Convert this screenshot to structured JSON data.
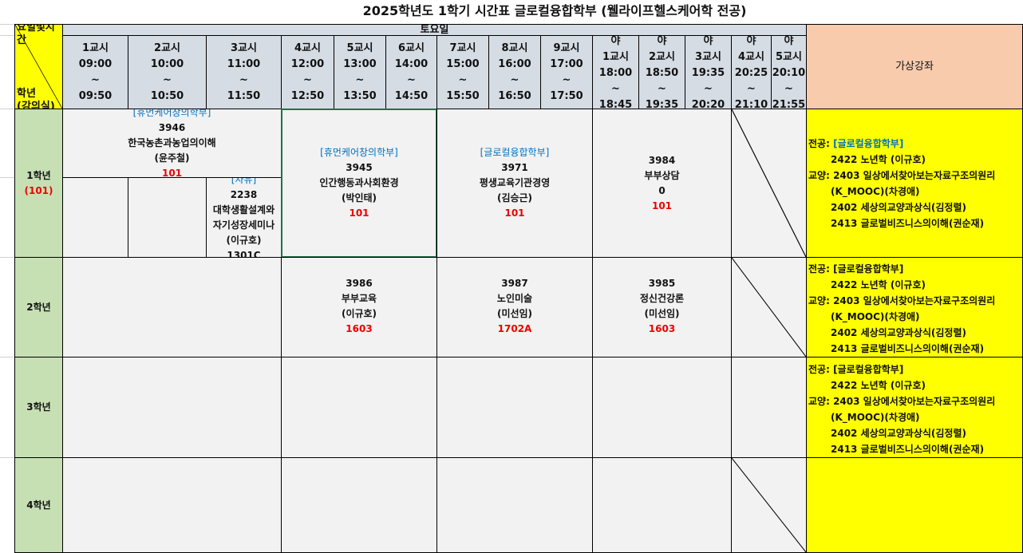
{
  "title": "2025학년도 1학기 시간표 글로컬융합학부 (웰라이프헬스케어학 전공)",
  "corner": {
    "top": "요일및시간",
    "bottom": "학년\n(강의실)"
  },
  "day": "토요일",
  "virtual_header": "가상강좌",
  "periods": [
    {
      "l1": "",
      "l2": "1교시",
      "t1": "09:00",
      "t2": "09:50"
    },
    {
      "l1": "",
      "l2": "2교시",
      "t1": "10:00",
      "t2": "10:50"
    },
    {
      "l1": "",
      "l2": "3교시",
      "t1": "11:00",
      "t2": "11:50"
    },
    {
      "l1": "",
      "l2": "4교시",
      "t1": "12:00",
      "t2": "12:50"
    },
    {
      "l1": "",
      "l2": "5교시",
      "t1": "13:00",
      "t2": "13:50"
    },
    {
      "l1": "",
      "l2": "6교시",
      "t1": "14:00",
      "t2": "14:50"
    },
    {
      "l1": "",
      "l2": "7교시",
      "t1": "15:00",
      "t2": "15:50"
    },
    {
      "l1": "",
      "l2": "8교시",
      "t1": "16:00",
      "t2": "16:50"
    },
    {
      "l1": "",
      "l2": "9교시",
      "t1": "17:00",
      "t2": "17:50"
    },
    {
      "l1": "야",
      "l2": "1교시",
      "t1": "18:00",
      "t2": "18:45"
    },
    {
      "l1": "야",
      "l2": "2교시",
      "t1": "18:50",
      "t2": "19:35"
    },
    {
      "l1": "야",
      "l2": "3교시",
      "t1": "19:35",
      "t2": "20:20"
    },
    {
      "l1": "야",
      "l2": "4교시",
      "t1": "20:25",
      "t2": "21:10"
    },
    {
      "l1": "야",
      "l2": "5교시",
      "t1": "20:10",
      "t2": "21:55"
    }
  ],
  "tilde": "~",
  "grades": [
    {
      "label": "1학년",
      "room": "(101)"
    },
    {
      "label": "2학년",
      "room": ""
    },
    {
      "label": "3학년",
      "room": ""
    },
    {
      "label": "4학년",
      "room": ""
    }
  ],
  "courses": {
    "c3946": {
      "dept": "[휴먼케어창의학부]",
      "code": "3946",
      "name": "한국농촌과농업의이해",
      "prof": "(윤주철)",
      "room": "101"
    },
    "c2238": {
      "dept": "[자유]",
      "code": "2238",
      "name": "대학생활설계와",
      "name2": "자기성장세미나",
      "prof": "(이규호)",
      "room": "1301C"
    },
    "c3945": {
      "dept": "[휴먼케어창의학부]",
      "code": "3945",
      "name": "인간행동과사회환경",
      "prof": "(박인태)",
      "room": "101"
    },
    "c3971": {
      "dept": "[글로컬융합학부]",
      "code": "3971",
      "name": "평생교육기관경영",
      "prof": "(김승근)",
      "room": "101"
    },
    "c3984": {
      "code": "3984",
      "name": "부부상담",
      "prof": "0",
      "room": "101"
    },
    "c3986": {
      "code": "3986",
      "name": "부부교육",
      "prof": "(이규호)",
      "room": "1603"
    },
    "c3987": {
      "code": "3987",
      "name": "노인미술",
      "prof": "(미선임)",
      "room": "1702A"
    },
    "c3985": {
      "code": "3985",
      "name": "정신건강론",
      "prof": "(미선임)",
      "room": "1603"
    }
  },
  "virtual": {
    "major_label": "전공:",
    "major_dept": "[글로컬융합학부]",
    "major_course": "2422 노년학 (이규호)",
    "gen_label": "교양:",
    "gen1": "2403 일상에서찾아보는자료구조의원리",
    "gen1b": "(K_MOOC)(차경애)",
    "gen2": "2402 세상의교양과상식(김정렬)",
    "gen3": "2413 글로벌비즈니스의이해(권순재)"
  },
  "colors": {
    "header": "#d6dce4",
    "grade": "#c6e0b4",
    "corner": "#ffff00",
    "virtual_header": "#f8cbad",
    "virtual": "#ffff00",
    "dept": "#0070c0",
    "room": "#ff0000",
    "selection": "#217346"
  }
}
